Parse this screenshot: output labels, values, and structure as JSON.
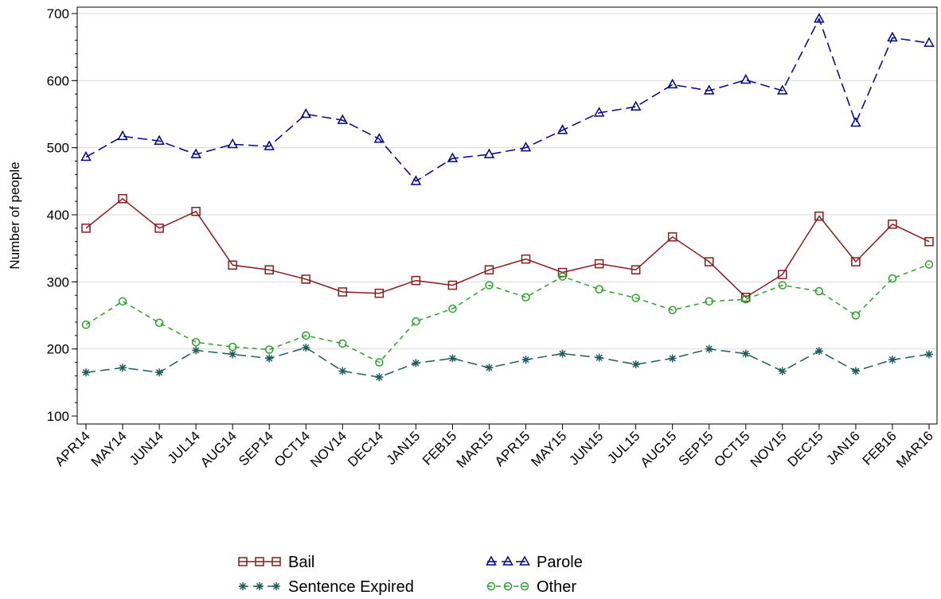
{
  "chart_data": {
    "type": "line",
    "title": "",
    "xlabel": "",
    "ylabel": "Number of people",
    "ylim": [
      100,
      700
    ],
    "yticks": [
      100,
      200,
      300,
      400,
      500,
      600,
      700
    ],
    "grid": "horizontal",
    "legend_position": "bottom",
    "categories": [
      "APR14",
      "MAY14",
      "JUN14",
      "JUL14",
      "AUG14",
      "SEP14",
      "OCT14",
      "NOV14",
      "DEC14",
      "JAN15",
      "FEB15",
      "MAR15",
      "APR15",
      "MAY15",
      "JUN15",
      "JUL15",
      "AUG15",
      "SEP15",
      "OCT15",
      "NOV15",
      "DEC15",
      "JAN16",
      "FEB16",
      "MAR16"
    ],
    "series": [
      {
        "name": "Bail",
        "color": "#8b1a1a",
        "marker": "square",
        "dash": "solid",
        "values": [
          380,
          424,
          380,
          405,
          325,
          318,
          304,
          285,
          283,
          302,
          295,
          318,
          334,
          314,
          327,
          318,
          367,
          330,
          277,
          311,
          398,
          330,
          386,
          360
        ]
      },
      {
        "name": "Parole",
        "color": "#00008b",
        "marker": "triangle",
        "dash": "long-dash",
        "values": [
          486,
          517,
          510,
          490,
          505,
          502,
          550,
          541,
          513,
          450,
          484,
          490,
          500,
          526,
          552,
          561,
          594,
          585,
          601,
          585,
          692,
          537,
          664,
          656
        ]
      },
      {
        "name": "Sentence Expired",
        "color": "#1f5c5c",
        "marker": "star",
        "dash": "long-dash",
        "values": [
          165,
          172,
          165,
          198,
          192,
          186,
          202,
          167,
          158,
          179,
          186,
          172,
          184,
          193,
          187,
          177,
          186,
          200,
          193,
          167,
          197,
          167,
          184,
          192
        ]
      },
      {
        "name": "Other",
        "color": "#2ca02c",
        "marker": "circle",
        "dash": "short-dash",
        "values": [
          236,
          271,
          239,
          210,
          203,
          199,
          220,
          208,
          180,
          241,
          260,
          295,
          277,
          308,
          289,
          276,
          258,
          271,
          274,
          295,
          286,
          250,
          305,
          326
        ]
      }
    ]
  }
}
